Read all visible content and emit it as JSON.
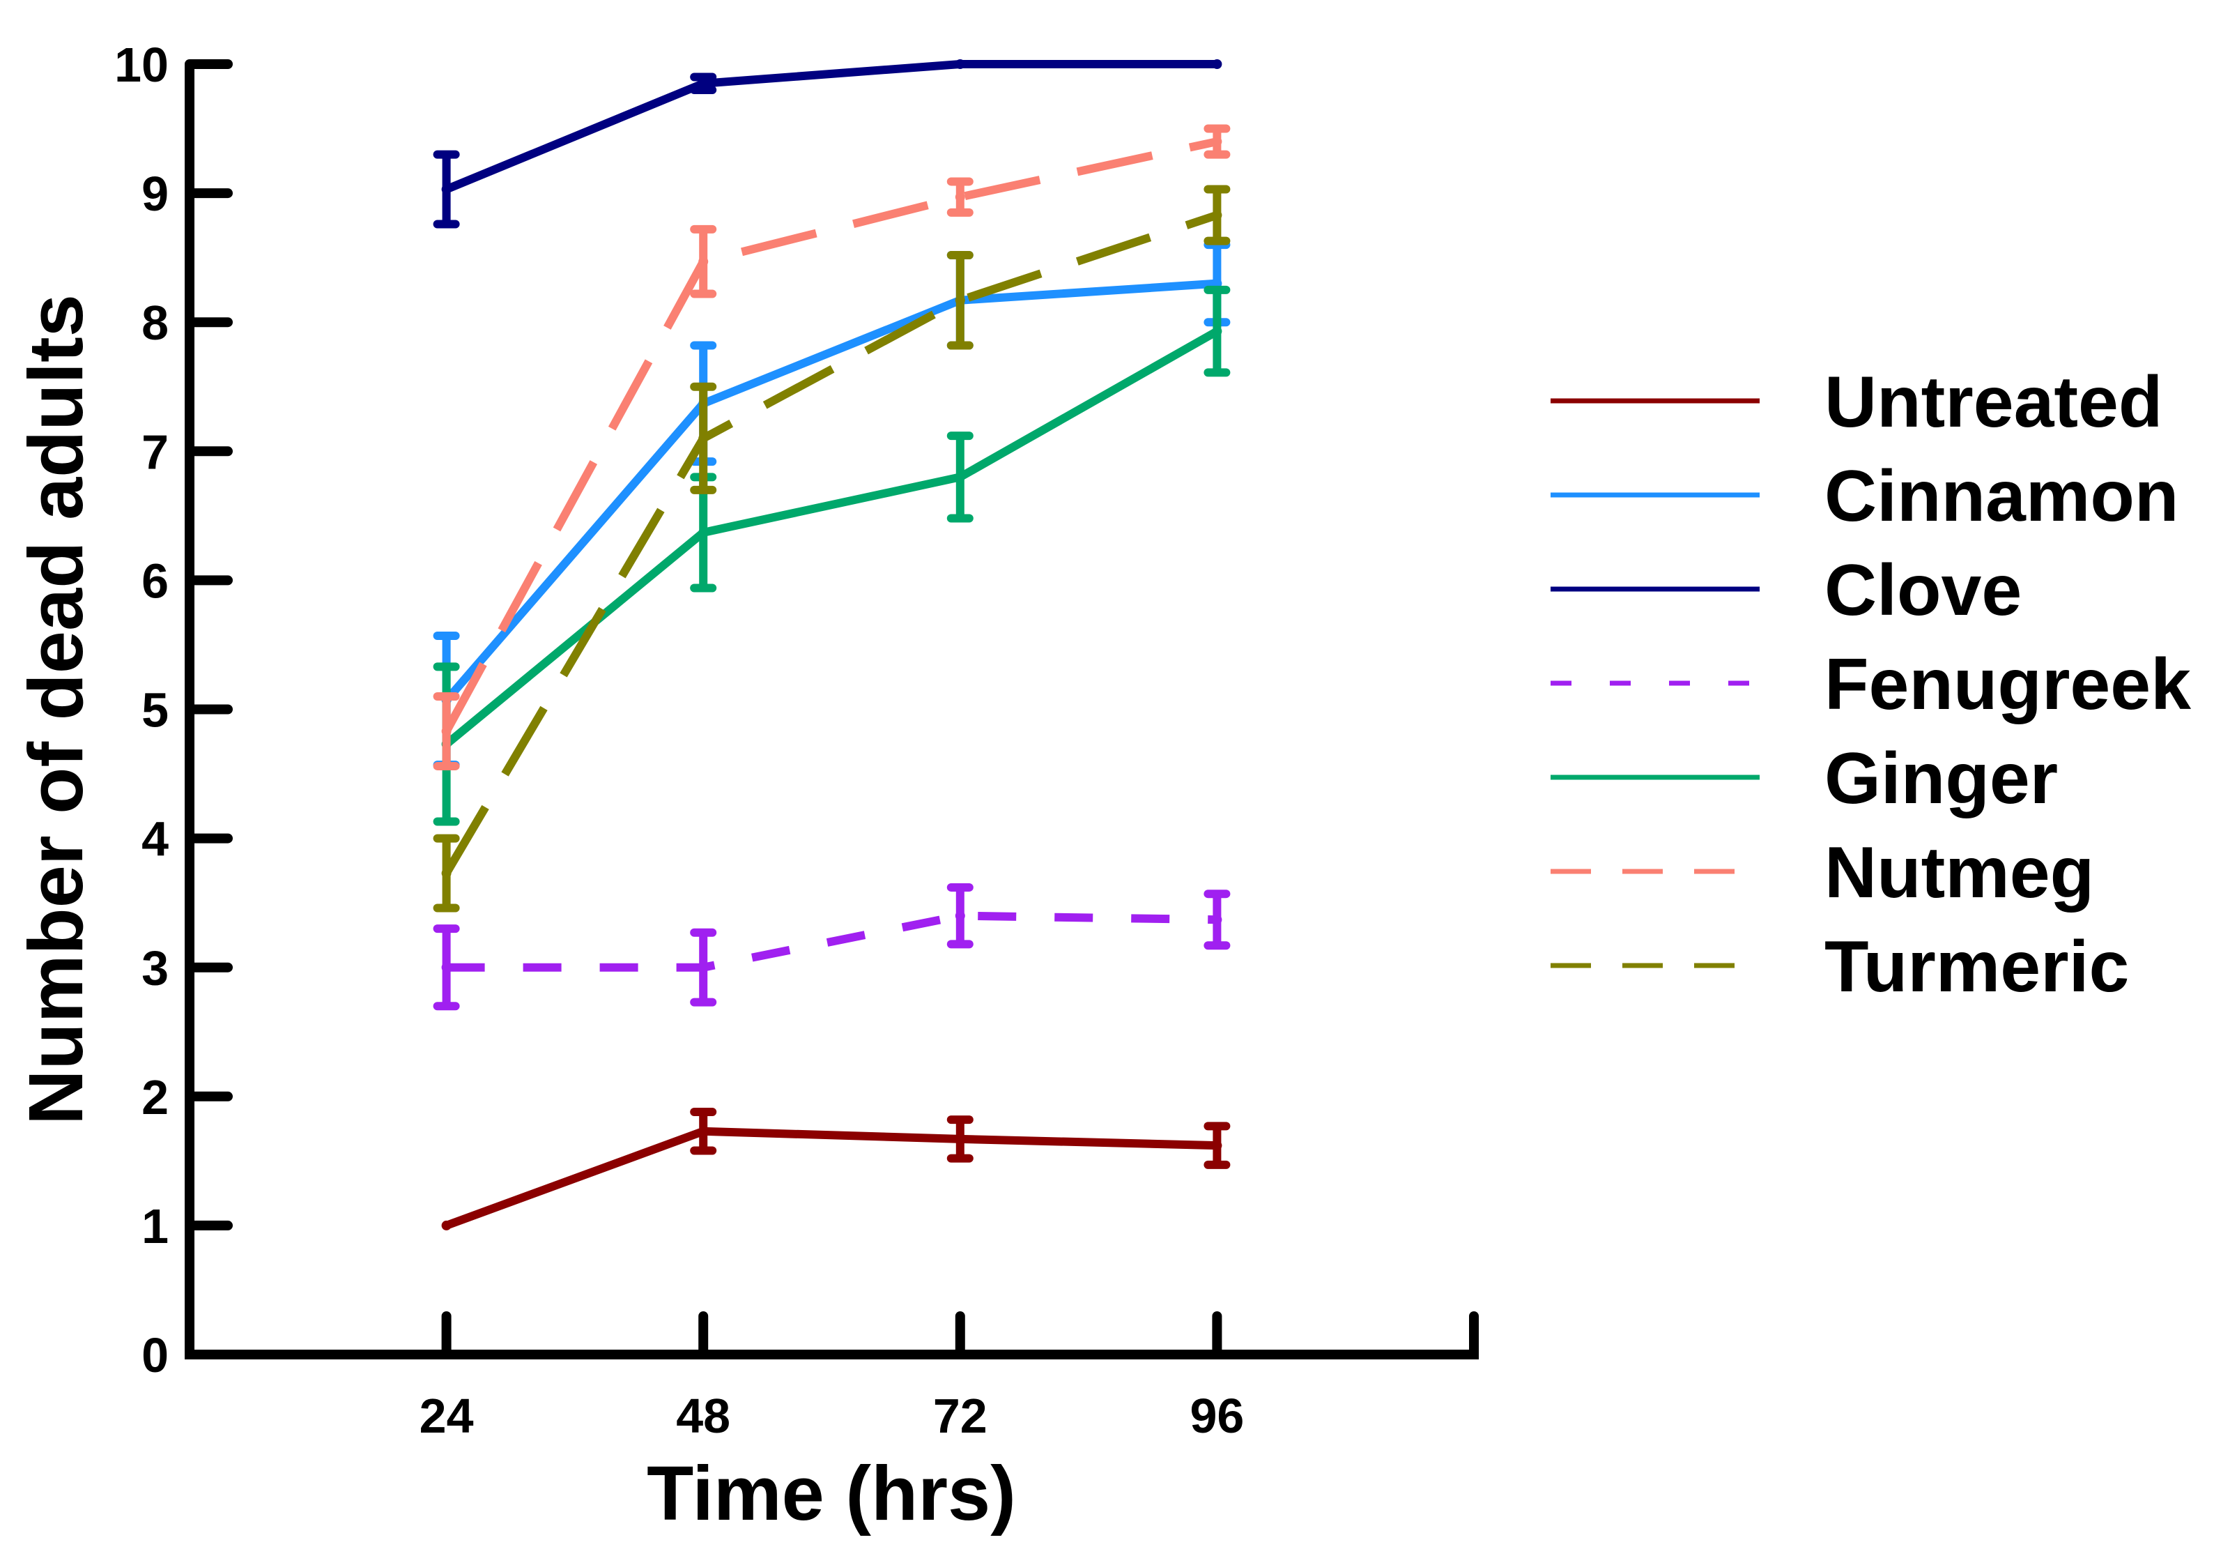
{
  "chart_data": {
    "type": "line",
    "title": "",
    "xlabel": "Time (hrs)",
    "ylabel": "Number of dead adults",
    "x": [
      24,
      48,
      72,
      96
    ],
    "x_tick_labels": [
      "24",
      "48",
      "72",
      "96"
    ],
    "xlim": [
      0,
      120
    ],
    "ylim": [
      0,
      10
    ],
    "y_ticks": [
      0,
      1,
      2,
      3,
      4,
      5,
      6,
      7,
      8,
      9,
      10
    ],
    "y_tick_labels": [
      "0",
      "1",
      "2",
      "3",
      "4",
      "5",
      "6",
      "7",
      "8",
      "9",
      "10"
    ],
    "grid": false,
    "legend_position": "right",
    "series": [
      {
        "name": "Untreated",
        "color": "#8B0000",
        "dash": "solid",
        "values": [
          1.0,
          1.73,
          1.67,
          1.62
        ],
        "errors": [
          0.0,
          0.15,
          0.15,
          0.15
        ]
      },
      {
        "name": "Cinnamon",
        "color": "#1E90FF",
        "dash": "solid",
        "values": [
          5.07,
          7.37,
          8.17,
          8.3
        ],
        "errors": [
          0.5,
          0.45,
          0.35,
          0.3
        ]
      },
      {
        "name": "Clove",
        "color": "#000080",
        "dash": "solid",
        "values": [
          9.03,
          9.85,
          10.0,
          10.0
        ],
        "errors": [
          0.27,
          0.05,
          0.0,
          0.0
        ]
      },
      {
        "name": "Fenugreek",
        "color": "#A020F0",
        "dash": "medium",
        "values": [
          3.0,
          3.0,
          3.4,
          3.37
        ],
        "errors": [
          0.3,
          0.27,
          0.22,
          0.2
        ]
      },
      {
        "name": "Ginger",
        "color": "#00A86B",
        "dash": "solid",
        "values": [
          4.73,
          6.37,
          6.8,
          7.93
        ],
        "errors": [
          0.6,
          0.43,
          0.32,
          0.32
        ]
      },
      {
        "name": "Nutmeg",
        "color": "#FA8072",
        "dash": "long",
        "values": [
          4.83,
          8.47,
          8.97,
          9.4
        ],
        "errors": [
          0.27,
          0.25,
          0.12,
          0.1
        ]
      },
      {
        "name": "Turmeric",
        "color": "#808000",
        "dash": "long",
        "values": [
          3.73,
          7.1,
          8.17,
          8.83
        ],
        "errors": [
          0.27,
          0.4,
          0.35,
          0.2
        ]
      }
    ]
  }
}
